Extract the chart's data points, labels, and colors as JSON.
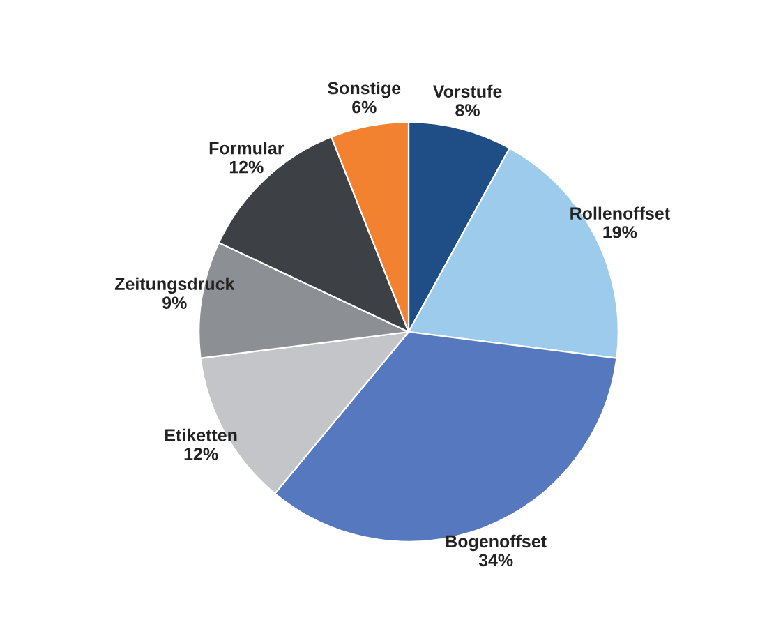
{
  "chart_data": {
    "type": "pie",
    "categories": [
      "Vorstufe",
      "Rollenoffset",
      "Bogenoffset",
      "Etiketten",
      "Zeitungsdruck",
      "Formular",
      "Sonstige"
    ],
    "values": [
      8,
      19,
      34,
      12,
      9,
      12,
      6
    ],
    "value_labels": [
      "8%",
      "19%",
      "34%",
      "12%",
      "9%",
      "12%",
      "6%"
    ],
    "colors": [
      "#1f4e87",
      "#9dcbec",
      "#5678be",
      "#c4c5c9",
      "#8c8f93",
      "#3d4044",
      "#f38230"
    ],
    "legend": false
  }
}
